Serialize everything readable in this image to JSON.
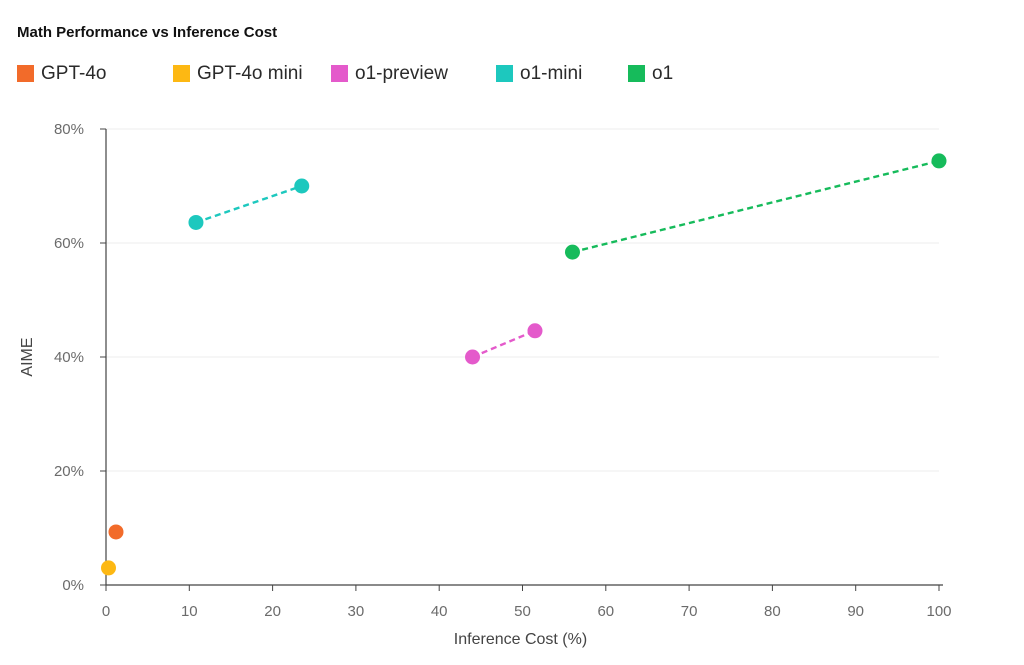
{
  "chart_data": {
    "type": "scatter",
    "title": "Math Performance vs Inference Cost",
    "xlabel": "Inference Cost (%)",
    "ylabel": "AIME",
    "xlim": [
      0,
      100
    ],
    "ylim": [
      0,
      80
    ],
    "x_ticks": [
      0,
      10,
      20,
      30,
      40,
      50,
      60,
      70,
      80,
      90,
      100
    ],
    "y_ticks": [
      0,
      20,
      40,
      60,
      80
    ],
    "y_tick_suffix": "%",
    "grid": true,
    "legend_position": "top-left",
    "series": [
      {
        "name": "GPT-4o",
        "color": "#F26B2A",
        "connected": false,
        "points": [
          {
            "x": 1.2,
            "y": 9.3
          }
        ]
      },
      {
        "name": "GPT-4o mini",
        "color": "#FDB813",
        "connected": false,
        "points": [
          {
            "x": 0.3,
            "y": 3.0
          }
        ]
      },
      {
        "name": "o1-preview",
        "color": "#E45ACB",
        "connected": true,
        "points": [
          {
            "x": 44.0,
            "y": 40.0
          },
          {
            "x": 51.5,
            "y": 44.6
          }
        ]
      },
      {
        "name": "o1-mini",
        "color": "#1DC8BE",
        "connected": true,
        "points": [
          {
            "x": 10.8,
            "y": 63.6
          },
          {
            "x": 23.5,
            "y": 70.0
          }
        ]
      },
      {
        "name": "o1",
        "color": "#16BB5B",
        "connected": true,
        "points": [
          {
            "x": 56.0,
            "y": 58.4
          },
          {
            "x": 100.0,
            "y": 74.4
          }
        ]
      }
    ]
  }
}
